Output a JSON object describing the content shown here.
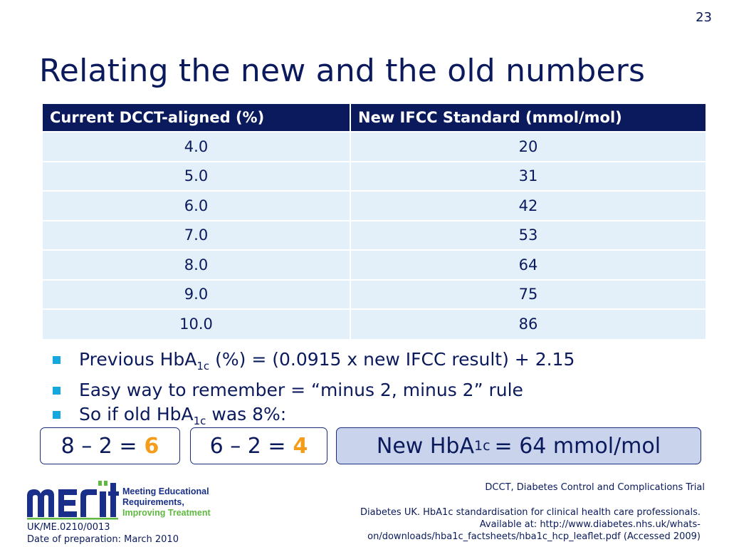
{
  "slide_number": "23",
  "title": "Relating the new and the old numbers",
  "table": {
    "headers": [
      "Current DCCT-aligned (%)",
      "New IFCC Standard (mmol/mol)"
    ],
    "rows": [
      [
        "4.0",
        "20"
      ],
      [
        "5.0",
        "31"
      ],
      [
        "6.0",
        "42"
      ],
      [
        "7.0",
        "53"
      ],
      [
        "8.0",
        "64"
      ],
      [
        "9.0",
        "75"
      ],
      [
        "10.0",
        "86"
      ]
    ]
  },
  "bullets": {
    "b1_pre": "Previous HbA",
    "b1_sub": "1c",
    "b1_post": " (%) = (0.0915 x new IFCC result) + 2.15",
    "b2": "Easy way to remember = “minus 2, minus 2” rule",
    "b3_pre": "So if old HbA",
    "b3_sub": "1c",
    "b3_post": " was 8%:"
  },
  "calc": {
    "step1_expr": "8 – 2 =",
    "step1_result": "6",
    "step2_expr": "6 – 2 =",
    "step2_result": "4",
    "final_pre": "New HbA",
    "final_sub": "1c",
    "final_post": "= 64 mmol/mol"
  },
  "logo": {
    "line1": "Meeting Educational",
    "line2": "Requirements,",
    "line3": "Improving Treatment"
  },
  "footnotes": {
    "abbreviation": "DCCT, Diabetes Control and Complications Trial",
    "reference_l1": "Diabetes UK. HbA1c standardisation for clinical health care professionals.",
    "reference_l2": "Available at: http://www.diabetes.nhs.uk/whats-",
    "reference_l3": "on/downloads/hba1c_factsheets/hba1c_hcp_leaflet.pdf (Accessed 2009)",
    "code": "UK/ME.0210/0013",
    "date": "Date of preparation: March 2010"
  },
  "colors": {
    "navy": "#0a1a5c",
    "table_row": "#e3f0fa",
    "bullet": "#14a8df",
    "highlight": "#f59c1a",
    "final_box": "#c9d4ec",
    "logo_blue": "#1a2f8a",
    "logo_green": "#5fb840"
  }
}
